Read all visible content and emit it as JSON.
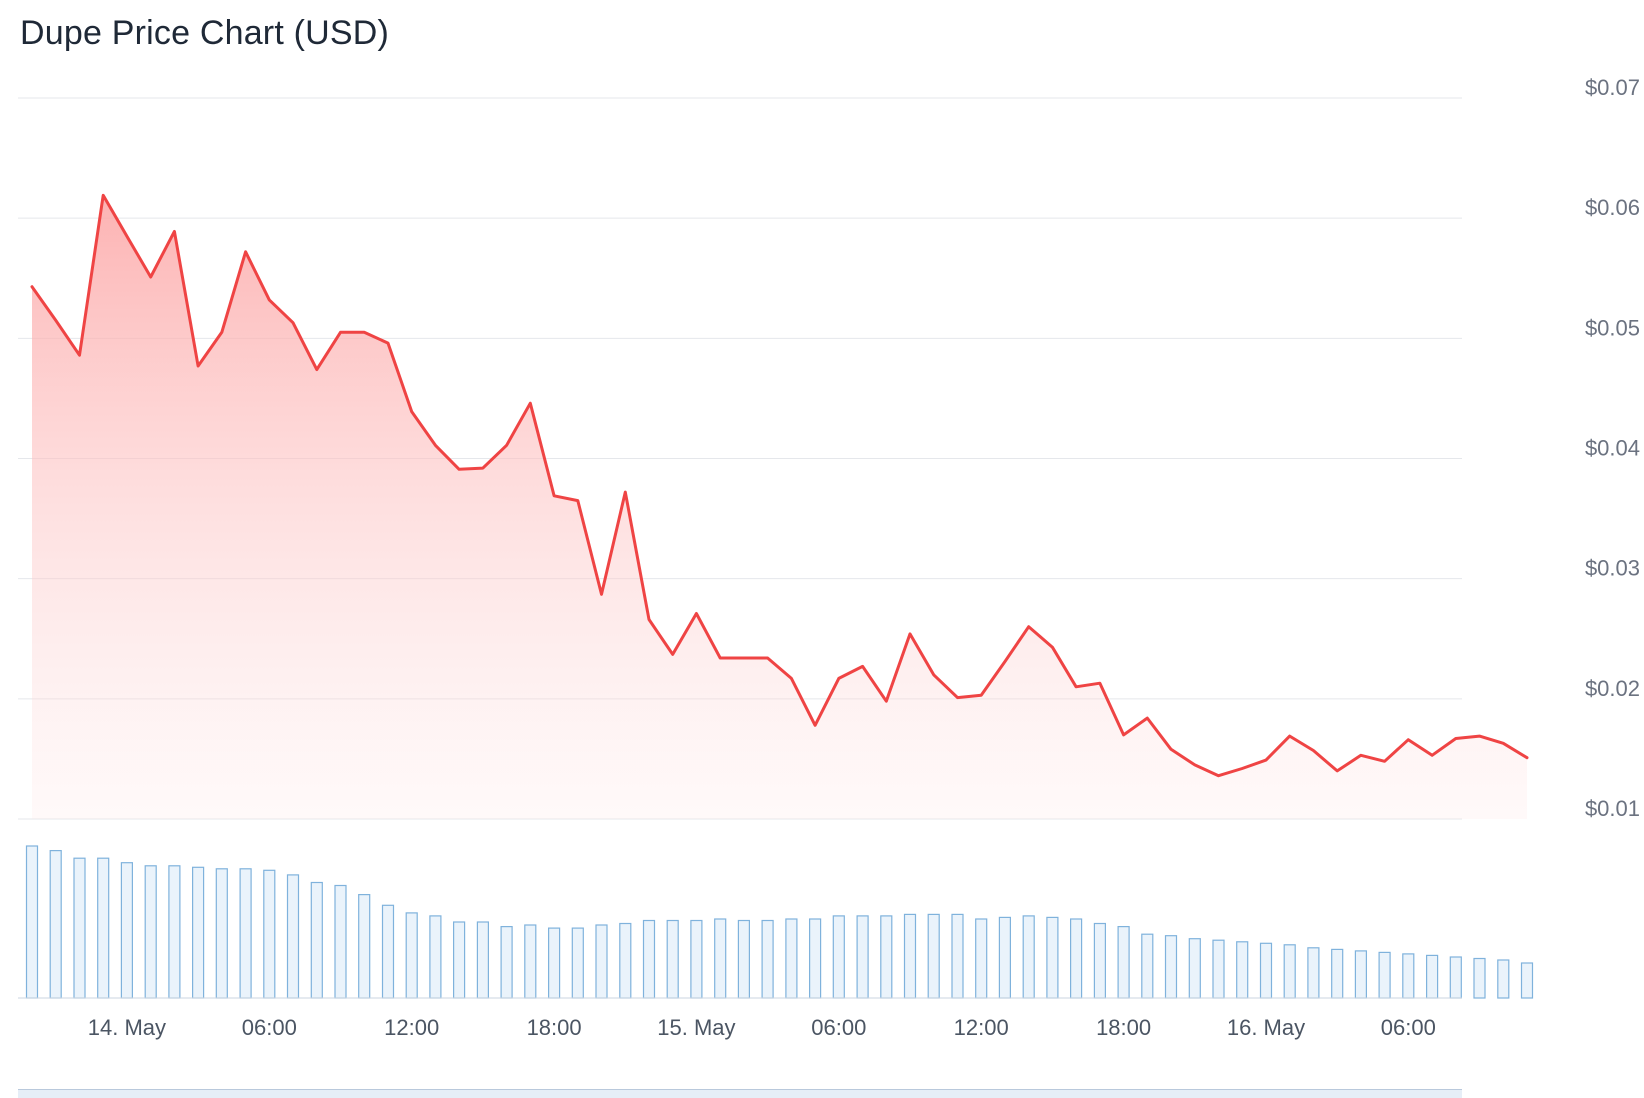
{
  "chart_data": {
    "type": "line",
    "title": "Dupe Price Chart (USD)",
    "xlabel": "",
    "ylabel": "",
    "ylim": [
      0.01,
      0.07
    ],
    "y_ticks": [
      "$0.07",
      "$0.06",
      "$0.05",
      "$0.04",
      "$0.03",
      "$0.02",
      "$0.01"
    ],
    "y_tick_values": [
      0.07,
      0.06,
      0.05,
      0.04,
      0.03,
      0.02,
      0.01
    ],
    "x_ticks": [
      {
        "label": "14. May",
        "t": 4
      },
      {
        "label": "06:00",
        "t": 10
      },
      {
        "label": "12:00",
        "t": 16
      },
      {
        "label": "18:00",
        "t": 22
      },
      {
        "label": "15. May",
        "t": 28
      },
      {
        "label": "06:00",
        "t": 34
      },
      {
        "label": "12:00",
        "t": 40
      },
      {
        "label": "18:00",
        "t": 46
      },
      {
        "label": "16. May",
        "t": 52
      },
      {
        "label": "06:00",
        "t": 58
      }
    ],
    "grid": true,
    "legend": "none",
    "colors": {
      "price_line": "#ef4444",
      "area_fill": "#fecaca",
      "volume_bar": "#7fb2dc"
    },
    "series": [
      {
        "type": "line",
        "values": [
          0.0543,
          0.0515,
          0.0486,
          0.0619,
          0.0585,
          0.0551,
          0.0589,
          0.0477,
          0.0505,
          0.0572,
          0.0532,
          0.0513,
          0.0474,
          0.0505,
          0.0505,
          0.0496,
          0.0439,
          0.0411,
          0.0391,
          0.0392,
          0.0411,
          0.0446,
          0.0369,
          0.0365,
          0.0287,
          0.0372,
          0.0266,
          0.0237,
          0.0271,
          0.0234,
          0.0234,
          0.0234,
          0.0217,
          0.0178,
          0.0217,
          0.0227,
          0.0198,
          0.0254,
          0.022,
          0.0201,
          0.0203,
          0.0231,
          0.026,
          0.0243,
          0.021,
          0.0213,
          0.017,
          0.0184,
          0.0158,
          0.0145,
          0.0136,
          0.0142,
          0.0149,
          0.0169,
          0.0157,
          0.014,
          0.0153,
          0.0148,
          0.0166,
          0.0153,
          0.0167,
          0.0169,
          0.0163,
          0.0151
        ]
      },
      {
        "type": "bar",
        "values": [
          100,
          97,
          92,
          92,
          89,
          87,
          87,
          86,
          85,
          85,
          84,
          81,
          76,
          74,
          68,
          61,
          56,
          54,
          50,
          50,
          47,
          48,
          46,
          46,
          48,
          49,
          51,
          51,
          51,
          52,
          51,
          51,
          52,
          52,
          54,
          54,
          54,
          55,
          55,
          55,
          52,
          53,
          54,
          53,
          52,
          49,
          47,
          42,
          41,
          39,
          38,
          37,
          36,
          35,
          33,
          32,
          31,
          30,
          29,
          28,
          27,
          26,
          25,
          23
        ]
      }
    ]
  }
}
